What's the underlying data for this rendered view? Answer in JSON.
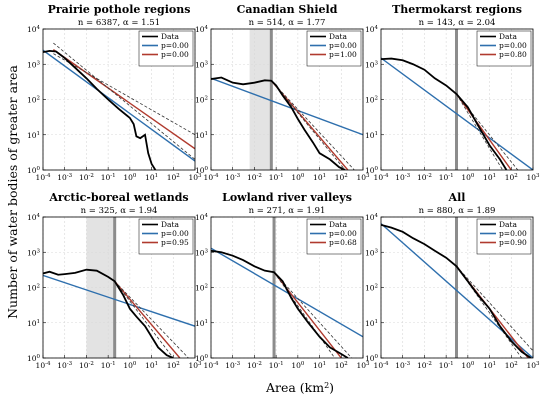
{
  "figure": {
    "xlabel": "Area (km",
    "xlabel_sup": "2",
    "xlabel_end": ")",
    "ylabel": "Number of water bodies of greater area"
  },
  "chart_data": [
    {
      "type": "line",
      "title": "Prairie pothole regions",
      "subtitle": "n = 6387, α = 1.51",
      "xscale": "log",
      "yscale": "log",
      "xlim": [
        0.0001,
        1000
      ],
      "ylim": [
        1,
        10000
      ],
      "x_ticks": [
        "10-4",
        "10-3",
        "10-2",
        "10-1",
        "100",
        "101",
        "102",
        "103"
      ],
      "y_ticks": [
        "100",
        "101",
        "102",
        "103",
        "104"
      ],
      "grid": true,
      "legend": "top-right",
      "shaded_band": null,
      "xmin_line": null,
      "series": [
        {
          "name": "Data",
          "color": "#000000",
          "style": "solid",
          "x": [
            0.0001,
            0.0002,
            0.0004,
            0.001,
            0.003,
            0.01,
            0.03,
            0.1,
            0.3,
            1,
            1.5,
            2,
            3,
            5,
            7,
            10,
            15
          ],
          "y": [
            2200,
            2400,
            2300,
            1500,
            800,
            400,
            200,
            100,
            55,
            30,
            20,
            9,
            8,
            10,
            3,
            1.5,
            1
          ]
        },
        {
          "name": "p=0.00",
          "color": "#2e6fad",
          "style": "solid",
          "x": [
            0.0001,
            1000
          ],
          "y": [
            2500,
            1.8
          ]
        },
        {
          "name": "p=0.00",
          "color": "#b03a2e",
          "style": "solid",
          "x": [
            0.0003,
            1000
          ],
          "y": [
            2600,
            4
          ]
        },
        {
          "name": "",
          "color": "#333333",
          "style": "dashed",
          "x": [
            0.0003,
            1000
          ],
          "y": [
            4000,
            2
          ]
        },
        {
          "name": "",
          "color": "#333333",
          "style": "dashed",
          "x": [
            0.0003,
            1000
          ],
          "y": [
            2000,
            10
          ]
        }
      ]
    },
    {
      "type": "line",
      "title": "Canadian Shield",
      "subtitle": "n = 514, α = 1.77",
      "xscale": "log",
      "yscale": "log",
      "xlim": [
        0.0001,
        1000
      ],
      "ylim": [
        1,
        10000
      ],
      "x_ticks": [
        "10-4",
        "10-3",
        "10-2",
        "10-1",
        "100",
        "101",
        "102",
        "103"
      ],
      "y_ticks": [
        "100",
        "101",
        "102",
        "103",
        "104"
      ],
      "grid": true,
      "legend": "top-right",
      "shaded_band": [
        0.006,
        0.06
      ],
      "xmin_line": 0.06,
      "series": [
        {
          "name": "Data",
          "color": "#000000",
          "style": "solid",
          "x": [
            0.0001,
            0.0003,
            0.001,
            0.003,
            0.01,
            0.03,
            0.06,
            0.1,
            0.2,
            0.5,
            1,
            2,
            5,
            10,
            30,
            80,
            150
          ],
          "y": [
            380,
            420,
            300,
            270,
            300,
            350,
            340,
            250,
            130,
            60,
            28,
            14,
            6,
            3,
            2,
            1.2,
            1
          ]
        },
        {
          "name": "p=0.00",
          "color": "#2e6fad",
          "style": "solid",
          "x": [
            0.0001,
            1000
          ],
          "y": [
            400,
            10
          ]
        },
        {
          "name": "p=1.00",
          "color": "#b03a2e",
          "style": "solid",
          "x": [
            0.06,
            200
          ],
          "y": [
            340,
            1
          ]
        },
        {
          "name": "",
          "color": "#333333",
          "style": "dashed",
          "x": [
            0.06,
            150
          ],
          "y": [
            340,
            1
          ]
        },
        {
          "name": "",
          "color": "#333333",
          "style": "dashed",
          "x": [
            0.06,
            400
          ],
          "y": [
            340,
            1
          ]
        }
      ]
    },
    {
      "type": "line",
      "title": "Thermokarst regions",
      "subtitle": "n = 143, α = 2.04",
      "xscale": "log",
      "yscale": "log",
      "xlim": [
        0.0001,
        1000
      ],
      "ylim": [
        1,
        10000
      ],
      "x_ticks": [
        "10-4",
        "10-3",
        "10-2",
        "10-1",
        "100",
        "101",
        "102",
        "103"
      ],
      "y_ticks": [
        "100",
        "101",
        "102",
        "103",
        "104"
      ],
      "grid": true,
      "legend": "top-right",
      "shaded_band": null,
      "xmin_line": 0.3,
      "series": [
        {
          "name": "Data",
          "color": "#000000",
          "style": "solid",
          "x": [
            0.0001,
            0.0003,
            0.001,
            0.003,
            0.01,
            0.03,
            0.1,
            0.3,
            1,
            3,
            10,
            30,
            60
          ],
          "y": [
            1400,
            1450,
            1300,
            1000,
            700,
            400,
            250,
            143,
            60,
            18,
            5,
            2,
            1
          ]
        },
        {
          "name": "p=0.00",
          "color": "#2e6fad",
          "style": "solid",
          "x": [
            0.0001,
            1000
          ],
          "y": [
            1500,
            1
          ]
        },
        {
          "name": "p=0.80",
          "color": "#b03a2e",
          "style": "solid",
          "x": [
            0.3,
            100
          ],
          "y": [
            143,
            1
          ]
        },
        {
          "name": "",
          "color": "#333333",
          "style": "dashed",
          "x": [
            0.3,
            40
          ],
          "y": [
            143,
            1
          ]
        },
        {
          "name": "",
          "color": "#333333",
          "style": "dashed",
          "x": [
            0.3,
            200
          ],
          "y": [
            143,
            1
          ]
        }
      ]
    },
    {
      "type": "line",
      "title": "Arctic-boreal wetlands",
      "subtitle": "n = 325, α = 1.94",
      "xscale": "log",
      "yscale": "log",
      "xlim": [
        0.0001,
        1000
      ],
      "ylim": [
        1,
        10000
      ],
      "x_ticks": [
        "10-4",
        "10-3",
        "10-2",
        "10-1",
        "100",
        "101",
        "102",
        "103"
      ],
      "y_ticks": [
        "100",
        "101",
        "102",
        "103",
        "104"
      ],
      "grid": true,
      "legend": "top-right",
      "shaded_band": [
        0.01,
        0.2
      ],
      "xmin_line": 0.2,
      "series": [
        {
          "name": "Data",
          "color": "#000000",
          "style": "solid",
          "x": [
            0.0001,
            0.0002,
            0.0005,
            0.001,
            0.003,
            0.01,
            0.03,
            0.1,
            0.2,
            0.5,
            1,
            2,
            5,
            10,
            20,
            50,
            100
          ],
          "y": [
            250,
            280,
            230,
            240,
            260,
            320,
            300,
            200,
            150,
            60,
            25,
            15,
            8,
            4,
            2,
            1.2,
            1
          ]
        },
        {
          "name": "p=0.00",
          "color": "#2e6fad",
          "style": "solid",
          "x": [
            0.0001,
            1000
          ],
          "y": [
            220,
            8
          ]
        },
        {
          "name": "p=0.95",
          "color": "#b03a2e",
          "style": "solid",
          "x": [
            0.2,
            200
          ],
          "y": [
            150,
            1
          ]
        },
        {
          "name": "",
          "color": "#333333",
          "style": "dashed",
          "x": [
            0.2,
            100
          ],
          "y": [
            150,
            1
          ]
        },
        {
          "name": "",
          "color": "#333333",
          "style": "dashed",
          "x": [
            0.2,
            500
          ],
          "y": [
            150,
            1
          ]
        }
      ]
    },
    {
      "type": "line",
      "title": "Lowland river valleys",
      "subtitle": "n = 271, α = 1.91",
      "xscale": "log",
      "yscale": "log",
      "xlim": [
        0.0001,
        1000
      ],
      "ylim": [
        1,
        10000
      ],
      "x_ticks": [
        "10-4",
        "10-3",
        "10-2",
        "10-1",
        "100",
        "101",
        "102",
        "103"
      ],
      "y_ticks": [
        "100",
        "101",
        "102",
        "103",
        "104"
      ],
      "grid": true,
      "legend": "top-right",
      "shaded_band": null,
      "xmin_line": 0.08,
      "series": [
        {
          "name": "Data",
          "color": "#000000",
          "style": "solid",
          "x": [
            0.0001,
            0.0003,
            0.001,
            0.003,
            0.01,
            0.03,
            0.08,
            0.2,
            0.5,
            1,
            3,
            10,
            30,
            100,
            200
          ],
          "y": [
            1100,
            1000,
            800,
            600,
            400,
            300,
            271,
            150,
            50,
            25,
            10,
            4,
            2,
            1.3,
            1
          ]
        },
        {
          "name": "p=0.00",
          "color": "#2e6fad",
          "style": "solid",
          "x": [
            0.0001,
            1000
          ],
          "y": [
            1300,
            4
          ]
        },
        {
          "name": "p=0.68",
          "color": "#b03a2e",
          "style": "solid",
          "x": [
            0.08,
            100
          ],
          "y": [
            271,
            1
          ]
        },
        {
          "name": "",
          "color": "#333333",
          "style": "dashed",
          "x": [
            0.08,
            50
          ],
          "y": [
            271,
            1
          ]
        },
        {
          "name": "",
          "color": "#333333",
          "style": "dashed",
          "x": [
            0.08,
            300
          ],
          "y": [
            271,
            1
          ]
        }
      ]
    },
    {
      "type": "line",
      "title": "All",
      "subtitle": "n = 880, α = 1.89",
      "xscale": "log",
      "yscale": "log",
      "xlim": [
        0.0001,
        1000
      ],
      "ylim": [
        1,
        10000
      ],
      "x_ticks": [
        "10-4",
        "10-3",
        "10-2",
        "10-1",
        "100",
        "101",
        "102",
        "103"
      ],
      "y_ticks": [
        "100",
        "101",
        "102",
        "103",
        "104"
      ],
      "grid": true,
      "legend": "top-right",
      "shaded_band": null,
      "xmin_line": 0.3,
      "series": [
        {
          "name": "Data",
          "color": "#000000",
          "style": "solid",
          "x": [
            0.0001,
            0.0003,
            0.001,
            0.003,
            0.01,
            0.03,
            0.1,
            0.3,
            1,
            3,
            10,
            30,
            100,
            300,
            800
          ],
          "y": [
            6000,
            5000,
            3800,
            2500,
            1700,
            1100,
            700,
            400,
            150,
            60,
            25,
            8,
            3,
            1.5,
            1
          ]
        },
        {
          "name": "p=0.00",
          "color": "#2e6fad",
          "style": "solid",
          "x": [
            0.0001,
            1000
          ],
          "y": [
            6500,
            1
          ]
        },
        {
          "name": "p=0.90",
          "color": "#b03a2e",
          "style": "solid",
          "x": [
            0.3,
            600
          ],
          "y": [
            400,
            1
          ]
        },
        {
          "name": "",
          "color": "#333333",
          "style": "dashed",
          "x": [
            0.3,
            300
          ],
          "y": [
            400,
            1
          ]
        },
        {
          "name": "",
          "color": "#333333",
          "style": "dashed",
          "x": [
            0.3,
            1000
          ],
          "y": [
            400,
            1.6
          ]
        }
      ]
    }
  ]
}
